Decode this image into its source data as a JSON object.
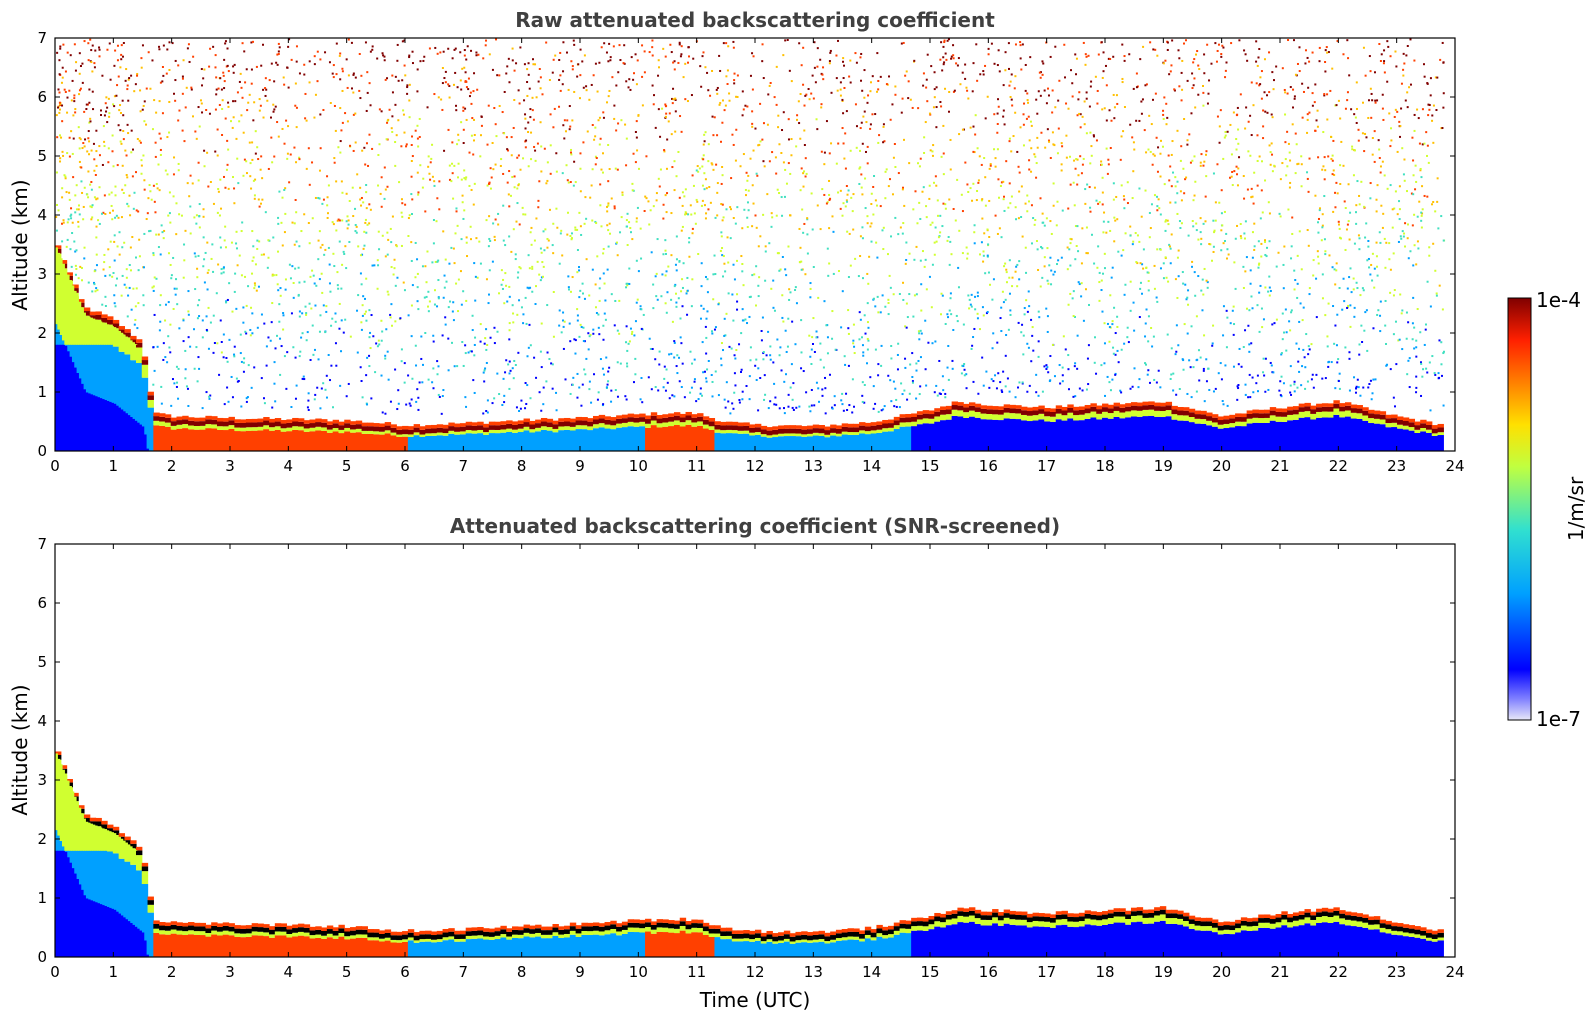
{
  "chart_data": [
    {
      "type": "heatmap",
      "title": "Raw attenuated backscattering coefficient",
      "xlabel": "",
      "ylabel": "Altitude (km)",
      "xlim": [
        0,
        24
      ],
      "ylim": [
        0,
        7
      ],
      "xticks": [
        "0",
        "1",
        "2",
        "3",
        "4",
        "5",
        "6",
        "7",
        "8",
        "9",
        "10",
        "11",
        "12",
        "13",
        "14",
        "15",
        "16",
        "17",
        "18",
        "19",
        "20",
        "21",
        "22",
        "23",
        "24"
      ],
      "yticks": [
        "0",
        "1",
        "2",
        "3",
        "4",
        "5",
        "6",
        "7"
      ],
      "data_end_time": 23.8,
      "boundary_layer_top_km": {
        "x": [
          0,
          0.5,
          1.0,
          1.5,
          1.7,
          2,
          3,
          4,
          5,
          6,
          7,
          8,
          9,
          10,
          10.5,
          11,
          11.5,
          12,
          13,
          14,
          15,
          15.5,
          16,
          17,
          18,
          19,
          20,
          21,
          22,
          23,
          23.8
        ],
        "y": [
          3.45,
          2.3,
          2.1,
          1.7,
          0.5,
          0.45,
          0.42,
          0.4,
          0.38,
          0.3,
          0.33,
          0.38,
          0.42,
          0.48,
          0.5,
          0.5,
          0.35,
          0.3,
          0.28,
          0.35,
          0.55,
          0.7,
          0.65,
          0.6,
          0.65,
          0.7,
          0.45,
          0.6,
          0.7,
          0.45,
          0.3
        ]
      }
    },
    {
      "type": "heatmap",
      "title": "Attenuated backscattering coefficient (SNR-screened)",
      "xlabel": "Time (UTC)",
      "ylabel": "Altitude (km)",
      "xlim": [
        0,
        24
      ],
      "ylim": [
        0,
        7
      ],
      "xticks": [
        "0",
        "1",
        "2",
        "3",
        "4",
        "5",
        "6",
        "7",
        "8",
        "9",
        "10",
        "11",
        "12",
        "13",
        "14",
        "15",
        "16",
        "17",
        "18",
        "19",
        "20",
        "21",
        "22",
        "23",
        "24"
      ],
      "yticks": [
        "0",
        "1",
        "2",
        "3",
        "4",
        "5",
        "6",
        "7"
      ],
      "data_end_time": 23.8,
      "boundary_layer_top_km": {
        "x": [
          0,
          0.5,
          1.0,
          1.5,
          1.7,
          2,
          3,
          4,
          5,
          6,
          7,
          8,
          9,
          10,
          10.5,
          11,
          11.5,
          12,
          13,
          14,
          15,
          15.5,
          16,
          17,
          18,
          19,
          20,
          21,
          22,
          23,
          23.8
        ],
        "y": [
          3.45,
          2.3,
          2.1,
          1.7,
          0.5,
          0.45,
          0.42,
          0.4,
          0.38,
          0.3,
          0.33,
          0.38,
          0.42,
          0.48,
          0.5,
          0.5,
          0.35,
          0.3,
          0.28,
          0.35,
          0.55,
          0.7,
          0.65,
          0.6,
          0.65,
          0.7,
          0.45,
          0.6,
          0.7,
          0.45,
          0.3
        ]
      }
    }
  ],
  "colorbar": {
    "label": "1/m/sr",
    "max_label": "1e-4",
    "min_label": "1e-7",
    "colormap": "jet",
    "colors": [
      "#e8e8f8",
      "#0000ff",
      "#00a0ff",
      "#40e0c0",
      "#d0ff30",
      "#ffc000",
      "#ff4000",
      "#800000"
    ]
  }
}
